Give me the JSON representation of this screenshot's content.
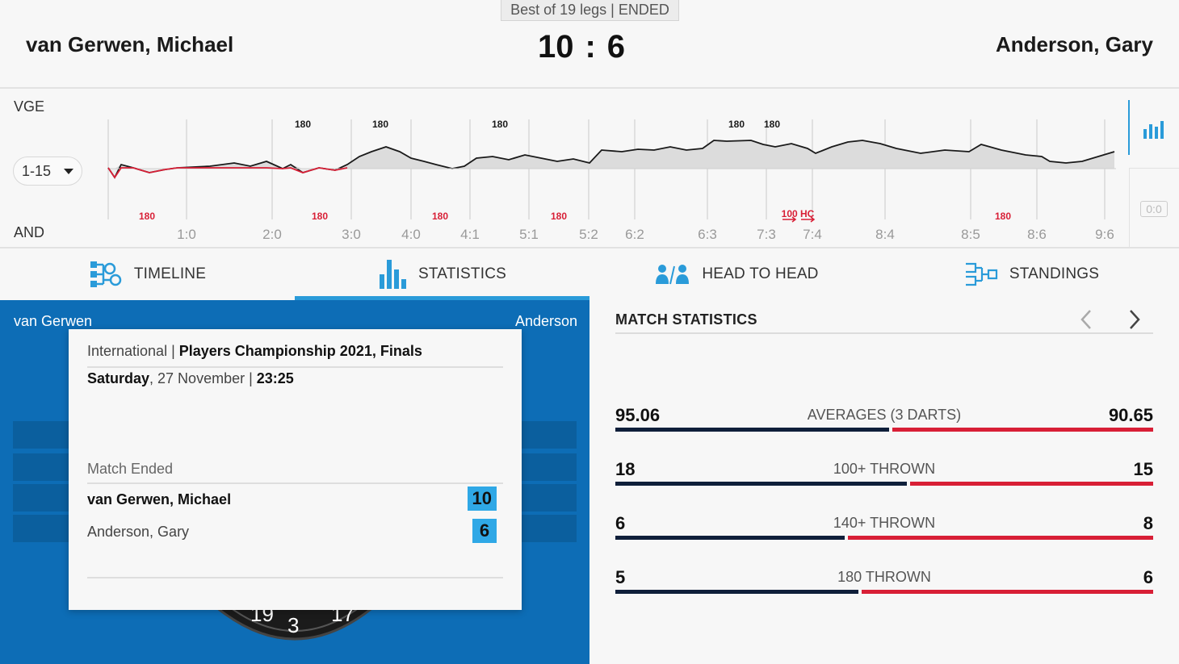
{
  "header": {
    "match_info": "Best of 19 legs | ENDED",
    "home_player": "van Gerwen, Michael",
    "away_player": "Anderson, Gary",
    "home_score": "10",
    "score_separator": ":",
    "away_score": "6"
  },
  "timeline": {
    "home_code": "VGE",
    "away_code": "AND",
    "range_value": "1-15",
    "score_badge": "0:0",
    "leg_ticks": [
      "1:0",
      "2:0",
      "3:0",
      "4:0",
      "4:1",
      "5:1",
      "5:2",
      "6:2",
      "6:3",
      "7:3",
      "7:4",
      "8:4",
      "8:5",
      "8:6",
      "9:6"
    ],
    "home_markers": [
      "180",
      "180",
      "180",
      "180",
      "180"
    ],
    "away_markers": [
      "180",
      "180",
      "180",
      "180",
      "100 HC",
      "180"
    ],
    "home_color": "#1a1a1a",
    "away_color": "#d81f36"
  },
  "tabs": [
    {
      "label": "TIMELINE",
      "icon": "timeline-icon",
      "active": false
    },
    {
      "label": "STATISTICS",
      "icon": "bar-chart-icon",
      "active": true
    },
    {
      "label": "HEAD TO HEAD",
      "icon": "head-to-head-icon",
      "active": false
    },
    {
      "label": "STANDINGS",
      "icon": "bracket-icon",
      "active": false
    }
  ],
  "board_panel": {
    "home_short": "van Gerwen",
    "away_short": "Anderson",
    "board_numbers": [
      "19",
      "3",
      "17"
    ]
  },
  "info_card": {
    "competition_prefix": "International | ",
    "competition_name": "Players Championship 2021, Finals",
    "day": "Saturday",
    "date_rest": ", 27 November | ",
    "time": "23:25",
    "status": "Match Ended",
    "home_name": "van Gerwen, Michael",
    "home_score": "10",
    "away_name": "Anderson, Gary",
    "away_score": "6"
  },
  "stats": {
    "title": "MATCH STATISTICS",
    "rows": [
      {
        "label": "AVERAGES (3 DARTS)",
        "home": "95.06",
        "away": "90.65",
        "home_val": 95.06,
        "away_val": 90.65
      },
      {
        "label": "100+ THROWN",
        "home": "18",
        "away": "15",
        "home_val": 18,
        "away_val": 15
      },
      {
        "label": "140+ THROWN",
        "home": "6",
        "away": "8",
        "home_val": 6,
        "away_val": 8
      },
      {
        "label": "180 THROWN",
        "home": "5",
        "away": "6",
        "home_val": 5,
        "away_val": 6
      }
    ],
    "home_bar_color": "#0f1f3a",
    "away_bar_color": "#d81f36"
  }
}
